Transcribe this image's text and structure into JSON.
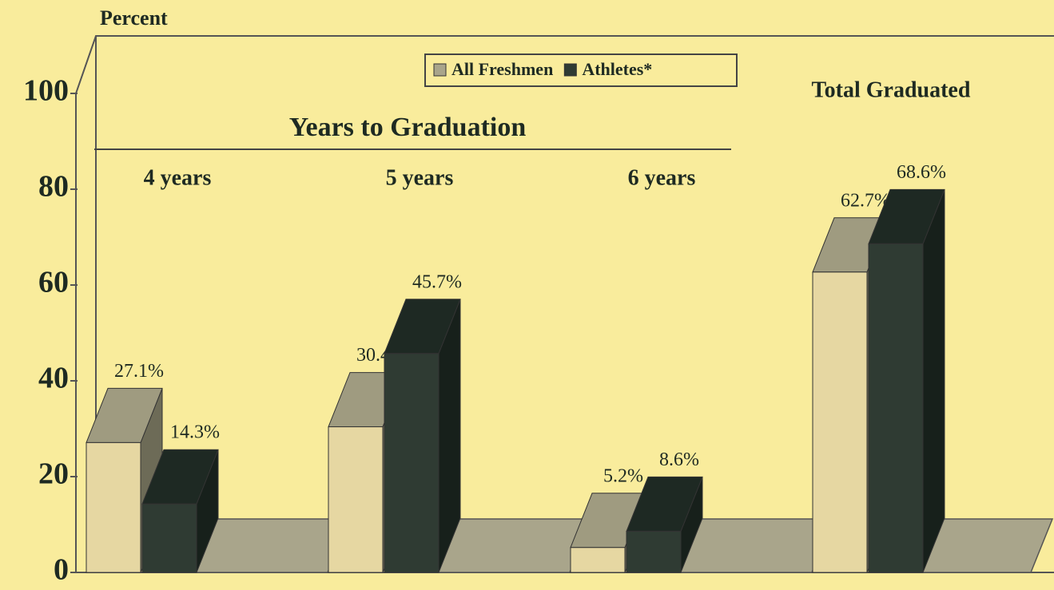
{
  "chart_data": {
    "type": "bar3d",
    "y_label": "Percent",
    "group_title": "Years to Graduation",
    "categories": [
      "4 years",
      "5 years",
      "6 years",
      "Total Graduated"
    ],
    "series": [
      {
        "name": "All Freshmen",
        "color": "#e6d7a2",
        "values": [
          27.1,
          30.4,
          5.2,
          62.7
        ],
        "value_labels": [
          "27.1%",
          "30.4%",
          "5.2%",
          "62.7%"
        ]
      },
      {
        "name": "Athletes*",
        "color": "#2f3b33",
        "values": [
          14.3,
          45.7,
          8.6,
          68.6
        ],
        "value_labels": [
          "14.3%",
          "45.7%",
          "8.6%",
          "68.6%"
        ]
      }
    ],
    "ylim": [
      0,
      100
    ],
    "yticks": [
      0,
      20,
      40,
      60,
      80,
      100
    ]
  }
}
